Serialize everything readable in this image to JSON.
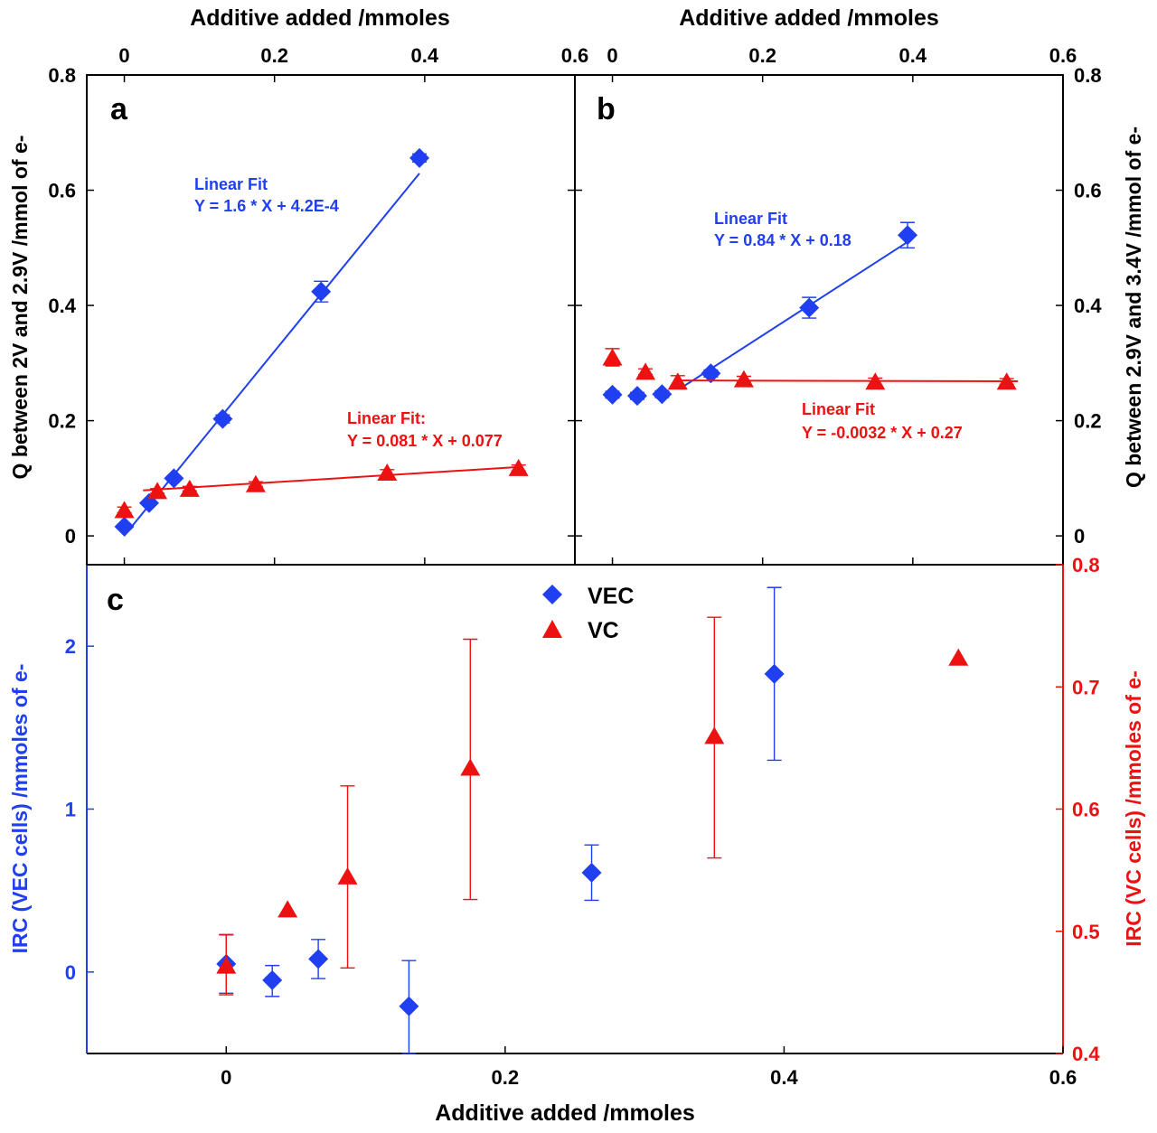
{
  "colors": {
    "vec": "#1f3ff0",
    "vc": "#ee1111",
    "axis": "#000000"
  },
  "chart_data": [
    {
      "panel": "a",
      "type": "scatter",
      "title": "",
      "xlabel": "Additive added /mmoles",
      "ylabel": "Q between 2V and 2.9V /mmol of e-",
      "xlim": [
        -0.05,
        0.6
      ],
      "ylim": [
        -0.05,
        0.8
      ],
      "x_ticks": [
        0,
        0.2,
        0.4,
        0.6
      ],
      "x_tick_labels": [
        "0",
        "0.2",
        "0.4",
        "0.6"
      ],
      "y_ticks": [
        0,
        0.2,
        0.4,
        0.6,
        0.8
      ],
      "y_tick_labels": [
        "0",
        "0.2",
        "0.4",
        "0.6",
        "0.8"
      ],
      "series": [
        {
          "key": "vec",
          "marker": "diamond",
          "x": [
            0,
            0.033,
            0.066,
            0.131,
            0.262,
            0.393
          ],
          "y": [
            0.016,
            0.057,
            0.1,
            0.203,
            0.424,
            0.656
          ],
          "err": [
            0.004,
            0.004,
            0.004,
            0.007,
            0.018,
            0.007
          ],
          "fit": {
            "from": 0,
            "to": 0.393,
            "slope": 1.6,
            "intercept": 0.00042
          }
        },
        {
          "key": "vc",
          "marker": "triangle",
          "x": [
            0,
            0.044,
            0.087,
            0.175,
            0.35,
            0.525
          ],
          "y": [
            0.045,
            0.078,
            0.082,
            0.09,
            0.11,
            0.118
          ],
          "err": [
            0.005,
            0.004,
            0.004,
            0.004,
            0.005,
            0.005
          ],
          "fit": {
            "from": 0.025,
            "to": 0.525,
            "slope": 0.081,
            "intercept": 0.077
          }
        }
      ],
      "annotations": [
        {
          "key": "vec",
          "lines": [
            "Linear Fit",
            "Y = 1.6 * X + 4.2E-4"
          ]
        },
        {
          "key": "vc",
          "lines": [
            "Linear Fit:",
            "Y = 0.081 * X + 0.077"
          ]
        }
      ]
    },
    {
      "panel": "b",
      "type": "scatter",
      "title": "",
      "xlabel": "Additive added /mmoles",
      "ylabel": "Q between 2.9V and 3.4V /mmol of e-",
      "xlim": [
        -0.05,
        0.6
      ],
      "ylim": [
        -0.05,
        0.8
      ],
      "x_ticks": [
        0,
        0.2,
        0.4,
        0.6
      ],
      "x_tick_labels": [
        "0",
        "0.2",
        "0.4",
        "0.6"
      ],
      "y_ticks": [
        0,
        0.2,
        0.4,
        0.6,
        0.8
      ],
      "y_tick_labels": [
        "0",
        "0.2",
        "0.4",
        "0.6",
        "0.8"
      ],
      "series": [
        {
          "key": "vec",
          "marker": "diamond",
          "x": [
            0,
            0.033,
            0.066,
            0.131,
            0.262,
            0.393
          ],
          "y": [
            0.245,
            0.243,
            0.246,
            0.282,
            0.396,
            0.522
          ],
          "err": [
            0.006,
            0.006,
            0.006,
            0.006,
            0.018,
            0.022
          ],
          "fit": {
            "from": 0.09,
            "to": 0.393,
            "slope": 0.84,
            "intercept": 0.18
          }
        },
        {
          "key": "vc",
          "marker": "triangle",
          "x": [
            0,
            0.044,
            0.087,
            0.175,
            0.35,
            0.525
          ],
          "y": [
            0.31,
            0.285,
            0.268,
            0.272,
            0.268,
            0.268
          ],
          "err": [
            0.015,
            0.005,
            0.01,
            0.005,
            0.006,
            0.005
          ],
          "fit": {
            "from": 0.087,
            "to": 0.54,
            "slope": -0.0032,
            "intercept": 0.27
          }
        }
      ],
      "annotations": [
        {
          "key": "vec",
          "lines": [
            "Linear Fit",
            "Y = 0.84 * X + 0.18"
          ]
        },
        {
          "key": "vc",
          "lines": [
            "Linear Fit",
            "Y = -0.0032 * X + 0.27"
          ]
        }
      ]
    },
    {
      "panel": "c",
      "type": "scatter",
      "title": "",
      "xlabel": "Additive added /mmoles",
      "ylabel_left": "IRC (VEC cells) /mmoles of e-",
      "ylabel_right": "IRC (VC cells) /mmoles of e-",
      "xlim": [
        -0.1,
        0.6
      ],
      "ylim_left": [
        -0.5,
        2.5
      ],
      "ylim_right": [
        0.4,
        0.8
      ],
      "x_ticks": [
        0,
        0.2,
        0.4,
        0.6
      ],
      "x_tick_labels": [
        "0",
        "0.2",
        "0.4",
        "0.6"
      ],
      "y_ticks_left": [
        0,
        1,
        2
      ],
      "y_tick_labels_left": [
        "0",
        "1",
        "2"
      ],
      "y_ticks_right": [
        0.4,
        0.5,
        0.6,
        0.7,
        0.8
      ],
      "y_tick_labels_right": [
        "0.4",
        "0.5",
        "0.6",
        "0.7",
        "0.8"
      ],
      "legend": {
        "position": "top-center",
        "entries": [
          {
            "key": "vec",
            "label": "VEC"
          },
          {
            "key": "vc",
            "label": "VC"
          }
        ]
      },
      "series": [
        {
          "key": "vec",
          "marker": "diamond",
          "axis": "left",
          "x": [
            0,
            0.033,
            0.066,
            0.131,
            0.262,
            0.393
          ],
          "y": [
            0.05,
            -0.05,
            0.08,
            -0.21,
            0.61,
            1.83
          ],
          "err_low": [
            0.18,
            0.1,
            0.12,
            0.29,
            0.17,
            0.53
          ],
          "err_high": [
            0.18,
            0.09,
            0.12,
            0.28,
            0.17,
            0.53
          ]
        },
        {
          "key": "vc",
          "marker": "triangle",
          "axis": "right",
          "x": [
            0,
            0.044,
            0.087,
            0.175,
            0.35,
            0.525
          ],
          "y": [
            0.472,
            0.518,
            0.545,
            0.634,
            0.66,
            0.724
          ],
          "err_low": [
            0.024,
            0,
            0.075,
            0.108,
            0.1,
            0
          ],
          "err_high": [
            0.025,
            0,
            0.074,
            0.105,
            0.097,
            0
          ]
        }
      ]
    }
  ]
}
